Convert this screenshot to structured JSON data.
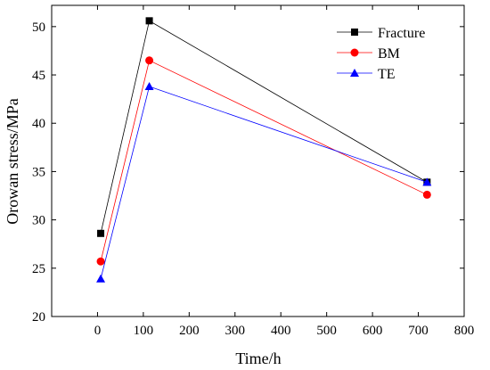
{
  "chart_data": {
    "type": "line",
    "xlabel": "Time/h",
    "ylabel": "Orowan stress/MPa",
    "xlim": [
      -100,
      800
    ],
    "ylim": [
      20,
      52.2
    ],
    "xticks": [
      0,
      100,
      200,
      300,
      400,
      500,
      600,
      700,
      800
    ],
    "yticks": [
      20,
      25,
      30,
      35,
      40,
      45,
      50
    ],
    "grid": false,
    "legend_position": "top-right",
    "series": [
      {
        "name": "Fracture",
        "color": "#000000",
        "marker": "square",
        "x": [
          7,
          113,
          719
        ],
        "y": [
          28.6,
          50.6,
          33.9
        ]
      },
      {
        "name": "BM",
        "color": "#ff0000",
        "marker": "circle",
        "x": [
          7,
          113,
          719
        ],
        "y": [
          25.7,
          46.5,
          32.6
        ]
      },
      {
        "name": "TE",
        "color": "#0000ff",
        "marker": "triangle",
        "x": [
          7,
          113,
          719
        ],
        "y": [
          23.9,
          43.8,
          33.9
        ]
      }
    ]
  }
}
